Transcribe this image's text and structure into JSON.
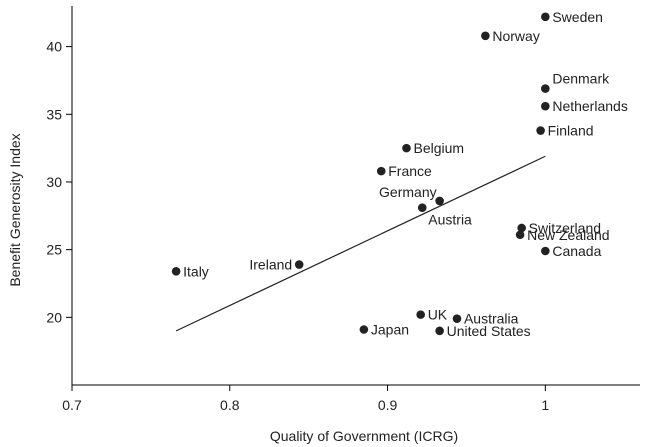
{
  "chart_data": {
    "type": "scatter",
    "xlabel": "Quality of Government (ICRG)",
    "ylabel": "Benefit Generosity Index",
    "xlim": [
      0.7,
      1.06
    ],
    "ylim": [
      15.0,
      43.0
    ],
    "x_ticks": [
      0.7,
      0.8,
      0.9,
      1.0
    ],
    "x_tick_labels": [
      "0.7",
      "0.8",
      "0.9",
      "1"
    ],
    "y_ticks": [
      20,
      25,
      30,
      35,
      40
    ],
    "y_tick_labels": [
      "20",
      "25",
      "30",
      "35",
      "40"
    ],
    "grid": false,
    "points": [
      {
        "label": "Sweden",
        "x": 1.0,
        "y": 42.2,
        "pos": "right"
      },
      {
        "label": "Norway",
        "x": 0.962,
        "y": 40.8,
        "pos": "right"
      },
      {
        "label": "Denmark",
        "x": 1.0,
        "y": 36.9,
        "pos": "upper-right"
      },
      {
        "label": "Netherlands",
        "x": 1.0,
        "y": 35.6,
        "pos": "right"
      },
      {
        "label": "Finland",
        "x": 0.997,
        "y": 33.8,
        "pos": "right"
      },
      {
        "label": "Belgium",
        "x": 0.912,
        "y": 32.5,
        "pos": "right"
      },
      {
        "label": "France",
        "x": 0.896,
        "y": 30.8,
        "pos": "right"
      },
      {
        "label": "Germany",
        "x": 0.933,
        "y": 28.6,
        "pos": "upper-left"
      },
      {
        "label": "Austria",
        "x": 0.922,
        "y": 28.1,
        "pos": "lower-right"
      },
      {
        "label": "Switzerland",
        "x": 0.985,
        "y": 26.6,
        "pos": "right"
      },
      {
        "label": "New Zealand",
        "x": 0.984,
        "y": 26.1,
        "pos": "right"
      },
      {
        "label": "Canada",
        "x": 1.0,
        "y": 24.9,
        "pos": "right"
      },
      {
        "label": "Ireland",
        "x": 0.844,
        "y": 23.9,
        "pos": "left"
      },
      {
        "label": "Italy",
        "x": 0.766,
        "y": 23.4,
        "pos": "right"
      },
      {
        "label": "UK",
        "x": 0.921,
        "y": 20.2,
        "pos": "right"
      },
      {
        "label": "Australia",
        "x": 0.944,
        "y": 19.9,
        "pos": "right"
      },
      {
        "label": "Japan",
        "x": 0.885,
        "y": 19.1,
        "pos": "right"
      },
      {
        "label": "United States",
        "x": 0.933,
        "y": 19.0,
        "pos": "right"
      }
    ],
    "fit_line": {
      "x": [
        0.766,
        1.0
      ],
      "y": [
        19.0,
        31.9
      ]
    }
  }
}
